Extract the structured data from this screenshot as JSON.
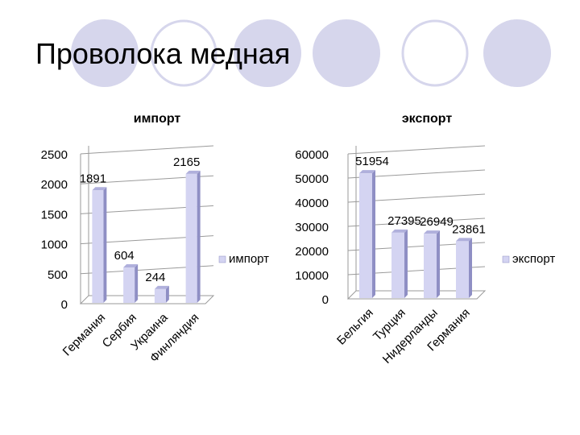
{
  "slide": {
    "title": "Проволока медная"
  },
  "colors": {
    "circle_fill": "#d6d6ec",
    "circle_stroke": "#d6d6ec",
    "bar_front": "#d4d4f2",
    "bar_side": "#8f8fc4",
    "bar_top": "#b0b0dc"
  },
  "chart_data": [
    {
      "type": "bar",
      "title": "импорт",
      "categories": [
        "Германия",
        "Сербия",
        "Украина",
        "Финляндия"
      ],
      "series": [
        {
          "name": "импорт",
          "values": [
            1891,
            604,
            244,
            2165
          ]
        }
      ],
      "ylim": [
        0,
        2500
      ],
      "yticks": [
        "0",
        "500",
        "1000",
        "1500",
        "2000",
        "2500"
      ],
      "legend": "right",
      "grid": true
    },
    {
      "type": "bar",
      "title": "экспорт",
      "categories": [
        "Бельгия",
        "Турция",
        "Нидерланды",
        "Германия"
      ],
      "series": [
        {
          "name": "экспорт",
          "values": [
            51954,
            27395,
            26949,
            23861
          ]
        }
      ],
      "ylim": [
        0,
        60000
      ],
      "yticks": [
        "0",
        "10000",
        "20000",
        "30000",
        "40000",
        "50000",
        "60000"
      ],
      "legend": "right",
      "grid": true
    }
  ]
}
